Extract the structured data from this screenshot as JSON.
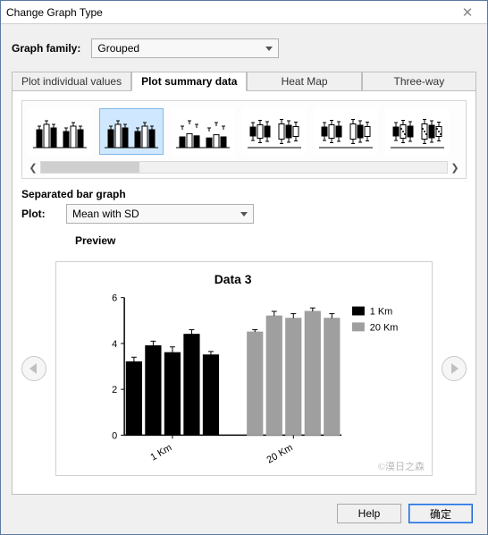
{
  "window": {
    "title": "Change Graph Type"
  },
  "family": {
    "label": "Graph family:",
    "value": "Grouped"
  },
  "tabs": [
    {
      "label": "Plot individual values",
      "active": false
    },
    {
      "label": "Plot summary data",
      "active": true
    },
    {
      "label": "Heat Map",
      "active": false
    },
    {
      "label": "Three-way",
      "active": false
    }
  ],
  "thumbnails": {
    "selected_index": 1,
    "count": 6
  },
  "section_title": "Separated bar graph",
  "plot": {
    "label": "Plot:",
    "value": "Mean with SD"
  },
  "preview_label": "Preview",
  "chart": {
    "title": "Data 3",
    "title_fontsize": 14,
    "ylim": [
      0,
      6
    ],
    "ytick_step": 2,
    "x_groups": [
      "1 Km",
      "20 Km"
    ],
    "x_label_rotation_deg": -30,
    "bars_per_group": 5,
    "values": [
      [
        3.2,
        3.9,
        3.6,
        4.4,
        3.5
      ],
      [
        4.5,
        5.2,
        5.1,
        5.4,
        5.1
      ]
    ],
    "errors": [
      [
        0.2,
        0.2,
        0.25,
        0.2,
        0.15
      ],
      [
        0.1,
        0.2,
        0.2,
        0.15,
        0.2
      ]
    ],
    "colors": [
      "#000000",
      "#9f9f9f"
    ],
    "bar_width": 0.8,
    "legend": [
      "1 Km",
      "20 Km"
    ],
    "legend_swatch_colors": [
      "#000000",
      "#9f9f9f"
    ],
    "legend_fontsize": 11,
    "axis_color": "#000000",
    "background_color": "#ffffff"
  },
  "buttons": {
    "help": "Help",
    "primary": "确定"
  },
  "watermark": "©漠日之森"
}
